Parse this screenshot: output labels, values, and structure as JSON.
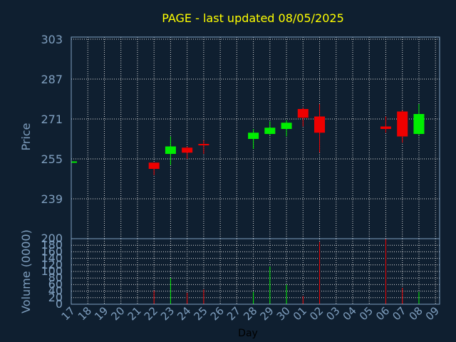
{
  "chart_data": {
    "type": "candlestick",
    "title": "PAGE - last updated 08/05/2025",
    "ylabel_price": "Price",
    "ylabel_volume": "Volume (0000)",
    "xlabel": "Day",
    "price_ylim": [
      239,
      303
    ],
    "price_ticks": [
      "303",
      "287",
      "271",
      "255",
      "239"
    ],
    "volume_ylim": [
      0,
      200
    ],
    "volume_ticks": [
      "200",
      "180",
      "160",
      "140",
      "120",
      "100",
      "80",
      "60",
      "40",
      "20",
      "0"
    ],
    "x_labels": [
      "17",
      "18",
      "19",
      "20",
      "21",
      "22",
      "23",
      "24",
      "25",
      "26",
      "27",
      "28",
      "29",
      "30",
      "01",
      "02",
      "03",
      "04",
      "05",
      "06",
      "07",
      "08",
      "09"
    ],
    "grid": true,
    "candles": [
      {
        "day": "17",
        "open": 254,
        "high": 254.5,
        "low": 253.5,
        "close": 254
      },
      {
        "day": "22",
        "open": 253.5,
        "high": 253.5,
        "low": 248.5,
        "close": 251
      },
      {
        "day": "23",
        "open": 257,
        "high": 264,
        "low": 252.5,
        "close": 260
      },
      {
        "day": "24",
        "open": 259.5,
        "high": 260,
        "low": 255,
        "close": 257.5
      },
      {
        "day": "25",
        "open": 261,
        "high": 262.5,
        "low": 257,
        "close": 260.5
      },
      {
        "day": "28",
        "open": 263,
        "high": 267,
        "low": 259,
        "close": 265.5
      },
      {
        "day": "29",
        "open": 265,
        "high": 270,
        "low": 264.5,
        "close": 267.5
      },
      {
        "day": "30",
        "open": 267,
        "high": 270.5,
        "low": 264,
        "close": 269.5
      },
      {
        "day": "01",
        "open": 275,
        "high": 275.5,
        "low": 268,
        "close": 271.5
      },
      {
        "day": "02",
        "open": 272,
        "high": 277,
        "low": 257.5,
        "close": 265.5
      },
      {
        "day": "06",
        "open": 268,
        "high": 272,
        "low": 265.5,
        "close": 267
      },
      {
        "day": "07",
        "open": 274,
        "high": 274.5,
        "low": 261.5,
        "close": 264
      },
      {
        "day": "08",
        "open": 265,
        "high": 277,
        "low": 264.5,
        "close": 273
      }
    ],
    "volume": [
      {
        "day": "22",
        "value": 42,
        "color": "red"
      },
      {
        "day": "23",
        "value": 80,
        "color": "green"
      },
      {
        "day": "24",
        "value": 35,
        "color": "red"
      },
      {
        "day": "25",
        "value": 45,
        "color": "red"
      },
      {
        "day": "28",
        "value": 38,
        "color": "green"
      },
      {
        "day": "29",
        "value": 115,
        "color": "green"
      },
      {
        "day": "30",
        "value": 60,
        "color": "green"
      },
      {
        "day": "01",
        "value": 25,
        "color": "red"
      },
      {
        "day": "02",
        "value": 190,
        "color": "red"
      },
      {
        "day": "06",
        "value": 200,
        "color": "red"
      },
      {
        "day": "07",
        "value": 50,
        "color": "red"
      },
      {
        "day": "08",
        "value": 38,
        "color": "green"
      }
    ],
    "colors": {
      "background": "#0f1f30",
      "title": "#ffff00",
      "axis_text": "#7f9fbf",
      "grid": "#d8d8d8",
      "frame": "#7f9fbf",
      "up": "#00ee00",
      "down": "#ee0000",
      "xlabel": "#000000"
    }
  }
}
